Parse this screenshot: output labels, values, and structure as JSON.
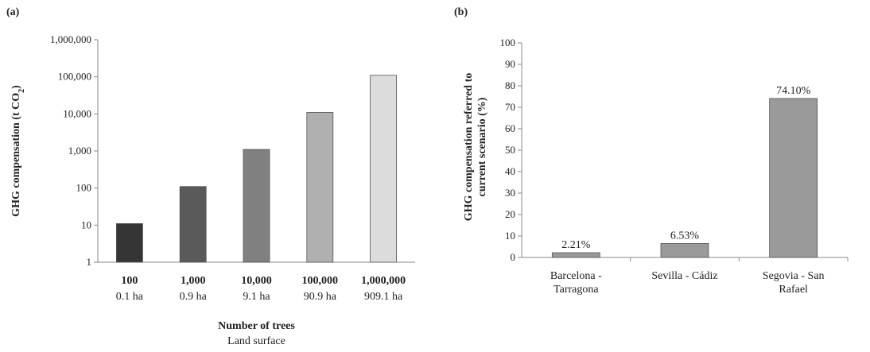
{
  "chart_data": [
    {
      "panel_label": "(a)",
      "type": "bar",
      "y_scale": "log",
      "ylim": [
        1,
        1000000
      ],
      "y_ticks": [
        1,
        10,
        100,
        1000,
        10000,
        100000,
        1000000
      ],
      "y_tick_labels": [
        "1",
        "10",
        "100",
        "1,000",
        "10,000",
        "100,000",
        "1,000,000"
      ],
      "ylabel": "GHG compensation (t CO2)",
      "xlabel": "Number of trees",
      "xlabel_sub": "Land surface",
      "categories": [
        "100",
        "1,000",
        "10,000",
        "100,000",
        "1,000,000"
      ],
      "categories_sub": [
        "0.1 ha",
        "0.9 ha",
        "9.1 ha",
        "90.9 ha",
        "909.1 ha"
      ],
      "values": [
        11,
        110,
        1100,
        11000,
        110000
      ],
      "bar_colors": [
        "#353535",
        "#5a5a5a",
        "#808080",
        "#b0b0b0",
        "#dcdcdc"
      ],
      "grid": false
    },
    {
      "panel_label": "(b)",
      "type": "bar",
      "ylim": [
        0,
        100
      ],
      "y_ticks": [
        0,
        10,
        20,
        30,
        40,
        50,
        60,
        70,
        80,
        90,
        100
      ],
      "ylabel_lines": [
        "GHG compensation referred to",
        "current scenario (%)"
      ],
      "categories": [
        [
          "Barcelona -",
          "Tarragona"
        ],
        [
          "Sevilla - Cádiz"
        ],
        [
          "Segovia - San",
          "Rafael"
        ]
      ],
      "values": [
        2.21,
        6.53,
        74.1
      ],
      "data_labels": [
        "2.21%",
        "6.53%",
        "74.10%"
      ],
      "bar_color": "#9a9a9a",
      "grid": false
    }
  ]
}
